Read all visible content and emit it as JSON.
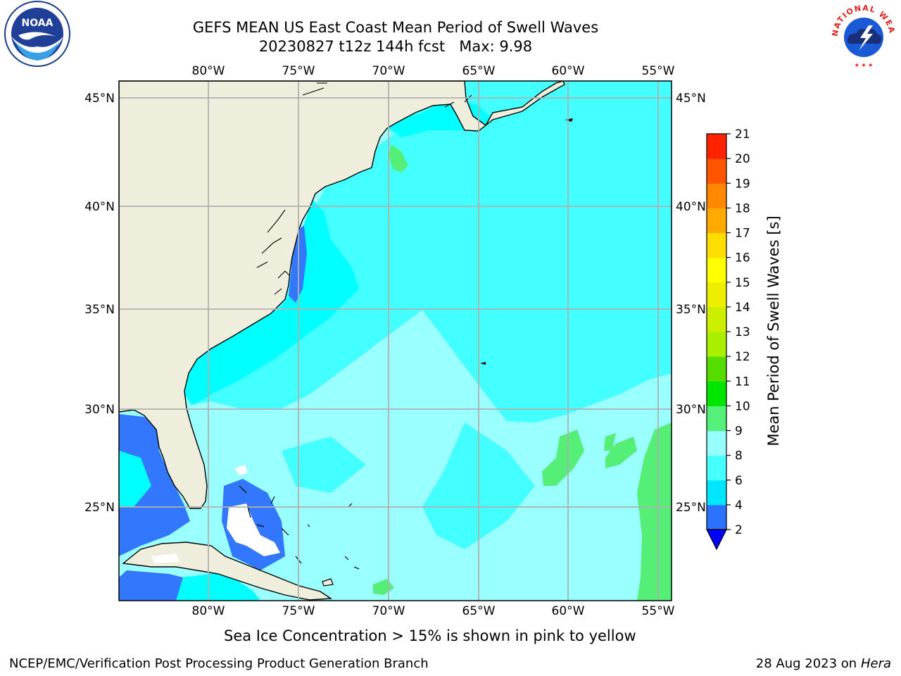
{
  "header": {
    "title": "GEFS MEAN US East Coast Mean Period of Swell Waves",
    "subtitle": "20230827 t12z 144h fcst   Max: 9.98",
    "logo_left": "NOAA",
    "logo_right": "NATIONAL WEATHER SERVICE"
  },
  "map": {
    "lon_labels": [
      "80°W",
      "75°W",
      "70°W",
      "65°W",
      "60°W",
      "55°W"
    ],
    "lat_labels": [
      "45°N",
      "40°N",
      "35°N",
      "30°N",
      "25°N"
    ],
    "lon_range": [
      -85,
      -54
    ],
    "lat_range": [
      20.5,
      46
    ],
    "colors": {
      "land": "#efeedd",
      "ocean_base": "#99ffff",
      "period_2_4": "#3377ff",
      "period_4_6": "#00ffff",
      "period_6_8": "#44ffff",
      "period_9_10": "#55ee77",
      "no_data": "#ffffff"
    }
  },
  "colorbar": {
    "label": "Mean Period of Swell Waves [s]",
    "ticks": [
      "2",
      "4",
      "6",
      "8",
      "9",
      "10",
      "11",
      "12",
      "13",
      "14",
      "15",
      "16",
      "17",
      "18",
      "19",
      "20",
      "21"
    ],
    "colors": [
      "#2a72ff",
      "#00e6ff",
      "#46ffff",
      "#98ffff",
      "#55f07a",
      "#00e600",
      "#55dd00",
      "#aaee00",
      "#ccee00",
      "#eeee00",
      "#ffff00",
      "#ffdd00",
      "#ffaa00",
      "#ff8800",
      "#ff5500",
      "#ff2200"
    ],
    "extend_color": "#0000ff"
  },
  "footer": {
    "note": "Sea Ice Concentration > 15% is shown in pink to yellow",
    "credit": "NCEP/EMC/Verification Post Processing Product Generation Branch",
    "date": "28 Aug 2023 on",
    "host": "Hera"
  }
}
